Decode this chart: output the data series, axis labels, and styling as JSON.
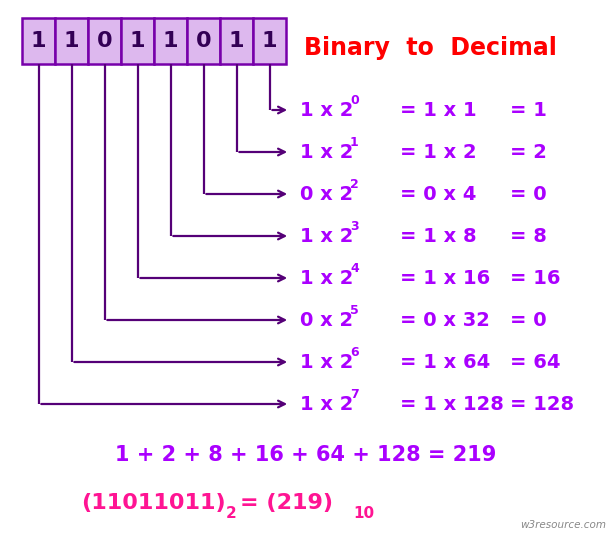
{
  "title": "Binary  to  Decimal",
  "title_color": "#ff0000",
  "binary_digits": [
    "1",
    "1",
    "0",
    "1",
    "1",
    "0",
    "1",
    "1"
  ],
  "box_fill": "#ddb8ee",
  "box_edge": "#7700aa",
  "digit_color": "#330055",
  "rows": [
    {
      "bit": "1",
      "exp": 0,
      "power_val": 1,
      "result": 1
    },
    {
      "bit": "1",
      "exp": 1,
      "power_val": 2,
      "result": 2
    },
    {
      "bit": "0",
      "exp": 2,
      "power_val": 4,
      "result": 0
    },
    {
      "bit": "1",
      "exp": 3,
      "power_val": 8,
      "result": 8
    },
    {
      "bit": "1",
      "exp": 4,
      "power_val": 16,
      "result": 16
    },
    {
      "bit": "0",
      "exp": 5,
      "power_val": 32,
      "result": 0
    },
    {
      "bit": "1",
      "exp": 6,
      "power_val": 64,
      "result": 64
    },
    {
      "bit": "1",
      "exp": 7,
      "power_val": 128,
      "result": 128
    }
  ],
  "sum_text": "1 + 2 + 8 + 16 + 64 + 128 = 219",
  "text_color": "#aa00ff",
  "arrow_color": "#550077",
  "watermark": "w3resource.com",
  "bg_color": "#ffffff",
  "fig_w": 6.11,
  "fig_h": 5.38,
  "dpi": 100
}
